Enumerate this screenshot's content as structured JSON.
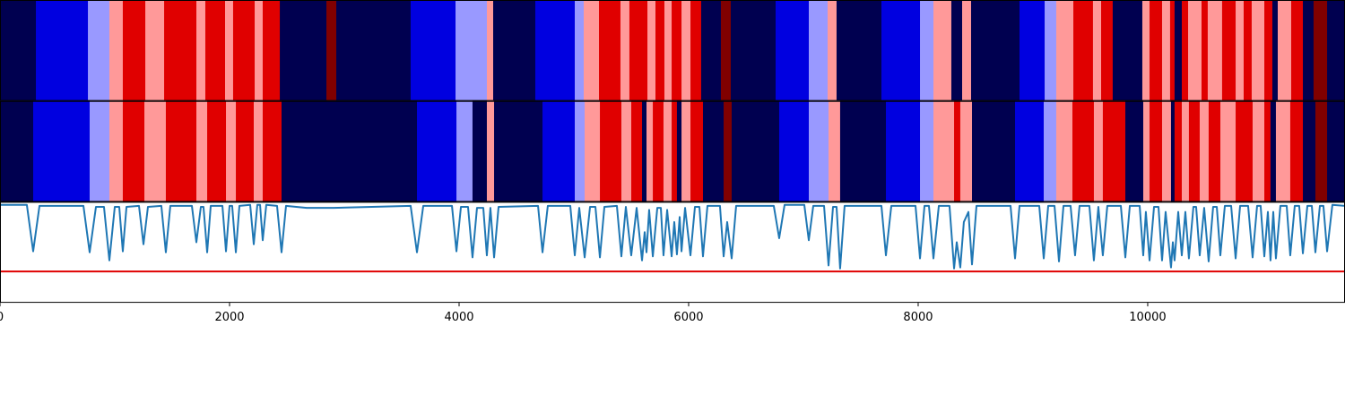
{
  "chart_data": [
    {
      "type": "segments",
      "xlim": [
        0,
        11719
      ],
      "boundaries": [
        0,
        313,
        766,
        953,
        1070,
        1266,
        1430,
        1711,
        1789,
        1961,
        2031,
        2219,
        2289,
        2438,
        2844,
        2930,
        3578,
        3969,
        4242,
        4297,
        4664,
        5008,
        5086,
        5219,
        5406,
        5484,
        5641,
        5711,
        5789,
        5852,
        5938,
        6016,
        6109,
        6281,
        6367,
        6758,
        7047,
        7211,
        7289,
        7680,
        8016,
        8133,
        8289,
        8383,
        8461,
        8883,
        9102,
        9203,
        9352,
        9523,
        9594,
        9695,
        9953,
        10016,
        10125,
        10195,
        10234,
        10297,
        10352,
        10469,
        10523,
        10648,
        10766,
        10836,
        10906,
        11016,
        11086,
        11133,
        11250,
        11352,
        11445,
        11563,
        11719
      ],
      "colors": [
        "#000050",
        "#0000e0",
        "#9999ff",
        "#ff9999",
        "#e00000",
        "#ff9999",
        "#e00000",
        "#ff9999",
        "#e00000",
        "#ff9999",
        "#e00000",
        "#ff9999",
        "#e00000",
        "#000050",
        "#800000",
        "#000050",
        "#0000e0",
        "#9999ff",
        "#ff9999",
        "#000050",
        "#0000e0",
        "#9999ff",
        "#ff9999",
        "#e00000",
        "#ff9999",
        "#e00000",
        "#ff9999",
        "#e00000",
        "#ff9999",
        "#e00000",
        "#ff9999",
        "#e00000",
        "#000050",
        "#800000",
        "#000050",
        "#0000e0",
        "#9999ff",
        "#ff9999",
        "#000050",
        "#0000e0",
        "#9999ff",
        "#ff9999",
        "#000050",
        "#ff9999",
        "#000050",
        "#0000e0",
        "#9999ff",
        "#ff9999",
        "#e00000",
        "#ff9999",
        "#e00000",
        "#000050",
        "#ff9999",
        "#e00000",
        "#ff9999",
        "#e00000",
        "#000050",
        "#e00000",
        "#ff9999",
        "#e00000",
        "#ff9999",
        "#e00000",
        "#ff9999",
        "#e00000",
        "#ff9999",
        "#e00000",
        "#000050",
        "#ff9999",
        "#e00000",
        "#000050",
        "#800000",
        "#000050"
      ]
    },
    {
      "type": "segments",
      "xlim": [
        0,
        11719
      ],
      "boundaries": [
        0,
        289,
        781,
        953,
        1070,
        1258,
        1445,
        1711,
        1805,
        1969,
        2055,
        2211,
        2289,
        2453,
        3633,
        3977,
        4117,
        4242,
        4305,
        4727,
        5008,
        5094,
        5227,
        5414,
        5500,
        5594,
        5633,
        5688,
        5781,
        5852,
        5898,
        5938,
        6016,
        6125,
        6305,
        6375,
        6789,
        7047,
        7219,
        7320,
        7719,
        8016,
        8133,
        8313,
        8367,
        8469,
        8844,
        9094,
        9203,
        9344,
        9531,
        9609,
        9805,
        9961,
        10016,
        10125,
        10203,
        10234,
        10297,
        10359,
        10453,
        10531,
        10633,
        10766,
        10914,
        11016,
        11070,
        11117,
        11242,
        11352,
        11461,
        11563,
        11719
      ],
      "colors": [
        "#000050",
        "#0000e0",
        "#9999ff",
        "#ff9999",
        "#e00000",
        "#ff9999",
        "#e00000",
        "#ff9999",
        "#e00000",
        "#ff9999",
        "#e00000",
        "#ff9999",
        "#e00000",
        "#000050",
        "#0000e0",
        "#9999ff",
        "#000050",
        "#ff9999",
        "#000050",
        "#0000e0",
        "#9999ff",
        "#ff9999",
        "#e00000",
        "#ff9999",
        "#e00000",
        "#000050",
        "#ff9999",
        "#e00000",
        "#ff9999",
        "#e00000",
        "#000050",
        "#ff9999",
        "#e00000",
        "#000050",
        "#800000",
        "#000050",
        "#0000e0",
        "#9999ff",
        "#ff9999",
        "#000050",
        "#0000e0",
        "#9999ff",
        "#ff9999",
        "#e00000",
        "#ff9999",
        "#000050",
        "#0000e0",
        "#9999ff",
        "#ff9999",
        "#e00000",
        "#ff9999",
        "#e00000",
        "#000050",
        "#ff9999",
        "#e00000",
        "#ff9999",
        "#000050",
        "#e00000",
        "#ff9999",
        "#e00000",
        "#ff9999",
        "#e00000",
        "#ff9999",
        "#e00000",
        "#ff9999",
        "#e00000",
        "#000050",
        "#ff9999",
        "#e00000",
        "#000050",
        "#800000",
        "#000050"
      ]
    },
    {
      "type": "line",
      "xlim": [
        0,
        11719
      ],
      "ylim": [
        0,
        1
      ],
      "color": "#1f77b4",
      "xticks": [
        0,
        2000,
        4000,
        6000,
        8000,
        10000
      ],
      "hline": {
        "y": 0.31,
        "color": "#e00000"
      },
      "x": [
        0,
        234,
        289,
        344,
        727,
        781,
        836,
        906,
        953,
        1000,
        1039,
        1070,
        1102,
        1211,
        1250,
        1289,
        1406,
        1445,
        1484,
        1672,
        1711,
        1750,
        1773,
        1805,
        1836,
        1938,
        1969,
        2000,
        2023,
        2055,
        2086,
        2180,
        2211,
        2242,
        2266,
        2289,
        2320,
        2414,
        2453,
        2492,
        2672,
        2906,
        3578,
        3633,
        3688,
        3938,
        3977,
        4016,
        4078,
        4117,
        4156,
        4211,
        4242,
        4273,
        4305,
        4344,
        4688,
        4727,
        4773,
        4969,
        5008,
        5047,
        5094,
        5141,
        5188,
        5227,
        5266,
        5375,
        5414,
        5453,
        5500,
        5547,
        5594,
        5617,
        5633,
        5656,
        5688,
        5727,
        5758,
        5781,
        5813,
        5852,
        5875,
        5898,
        5922,
        5938,
        5969,
        6016,
        6055,
        6094,
        6125,
        6164,
        6273,
        6305,
        6336,
        6375,
        6414,
        6742,
        6789,
        6836,
        7008,
        7047,
        7086,
        7180,
        7219,
        7258,
        7289,
        7320,
        7359,
        7680,
        7719,
        7766,
        7977,
        8016,
        8055,
        8094,
        8133,
        8180,
        8273,
        8313,
        8336,
        8367,
        8398,
        8438,
        8469,
        8508,
        8805,
        8844,
        8883,
        9055,
        9094,
        9133,
        9188,
        9227,
        9266,
        9328,
        9367,
        9406,
        9492,
        9531,
        9570,
        9609,
        9648,
        9766,
        9805,
        9844,
        9930,
        9961,
        9984,
        10016,
        10055,
        10094,
        10125,
        10156,
        10203,
        10219,
        10234,
        10266,
        10297,
        10328,
        10359,
        10398,
        10422,
        10453,
        10492,
        10531,
        10570,
        10602,
        10633,
        10672,
        10727,
        10766,
        10805,
        10875,
        10914,
        10953,
        10984,
        11016,
        11047,
        11070,
        11094,
        11117,
        11156,
        11211,
        11242,
        11281,
        11320,
        11352,
        11391,
        11430,
        11461,
        11500,
        11531,
        11563,
        11609,
        11719
      ],
      "y": [
        0.97,
        0.97,
        0.51,
        0.96,
        0.96,
        0.5,
        0.95,
        0.95,
        0.42,
        0.95,
        0.95,
        0.51,
        0.95,
        0.96,
        0.58,
        0.95,
        0.96,
        0.5,
        0.96,
        0.96,
        0.6,
        0.95,
        0.95,
        0.5,
        0.96,
        0.96,
        0.51,
        0.96,
        0.96,
        0.5,
        0.96,
        0.97,
        0.58,
        0.97,
        0.97,
        0.62,
        0.97,
        0.96,
        0.5,
        0.96,
        0.94,
        0.94,
        0.96,
        0.5,
        0.96,
        0.96,
        0.51,
        0.95,
        0.95,
        0.45,
        0.94,
        0.94,
        0.47,
        0.94,
        0.45,
        0.95,
        0.96,
        0.5,
        0.96,
        0.96,
        0.47,
        0.94,
        0.45,
        0.95,
        0.95,
        0.45,
        0.95,
        0.96,
        0.46,
        0.95,
        0.47,
        0.94,
        0.42,
        0.7,
        0.5,
        0.92,
        0.46,
        0.94,
        0.94,
        0.47,
        0.92,
        0.46,
        0.8,
        0.48,
        0.85,
        0.51,
        0.94,
        0.47,
        0.95,
        0.95,
        0.46,
        0.96,
        0.96,
        0.46,
        0.8,
        0.44,
        0.96,
        0.96,
        0.64,
        0.97,
        0.97,
        0.62,
        0.96,
        0.96,
        0.37,
        0.95,
        0.95,
        0.34,
        0.96,
        0.96,
        0.47,
        0.96,
        0.96,
        0.44,
        0.96,
        0.96,
        0.44,
        0.96,
        0.96,
        0.34,
        0.6,
        0.35,
        0.8,
        0.9,
        0.38,
        0.96,
        0.96,
        0.44,
        0.96,
        0.96,
        0.44,
        0.96,
        0.96,
        0.41,
        0.96,
        0.96,
        0.47,
        0.96,
        0.96,
        0.42,
        0.95,
        0.47,
        0.96,
        0.96,
        0.45,
        0.96,
        0.96,
        0.47,
        0.9,
        0.42,
        0.95,
        0.95,
        0.42,
        0.9,
        0.35,
        0.6,
        0.42,
        0.9,
        0.47,
        0.9,
        0.44,
        0.95,
        0.95,
        0.47,
        0.94,
        0.41,
        0.95,
        0.95,
        0.47,
        0.96,
        0.96,
        0.44,
        0.96,
        0.96,
        0.45,
        0.96,
        0.96,
        0.46,
        0.9,
        0.42,
        0.9,
        0.44,
        0.96,
        0.96,
        0.47,
        0.96,
        0.96,
        0.49,
        0.96,
        0.96,
        0.5,
        0.96,
        0.96,
        0.51,
        0.97,
        0.96
      ]
    }
  ]
}
